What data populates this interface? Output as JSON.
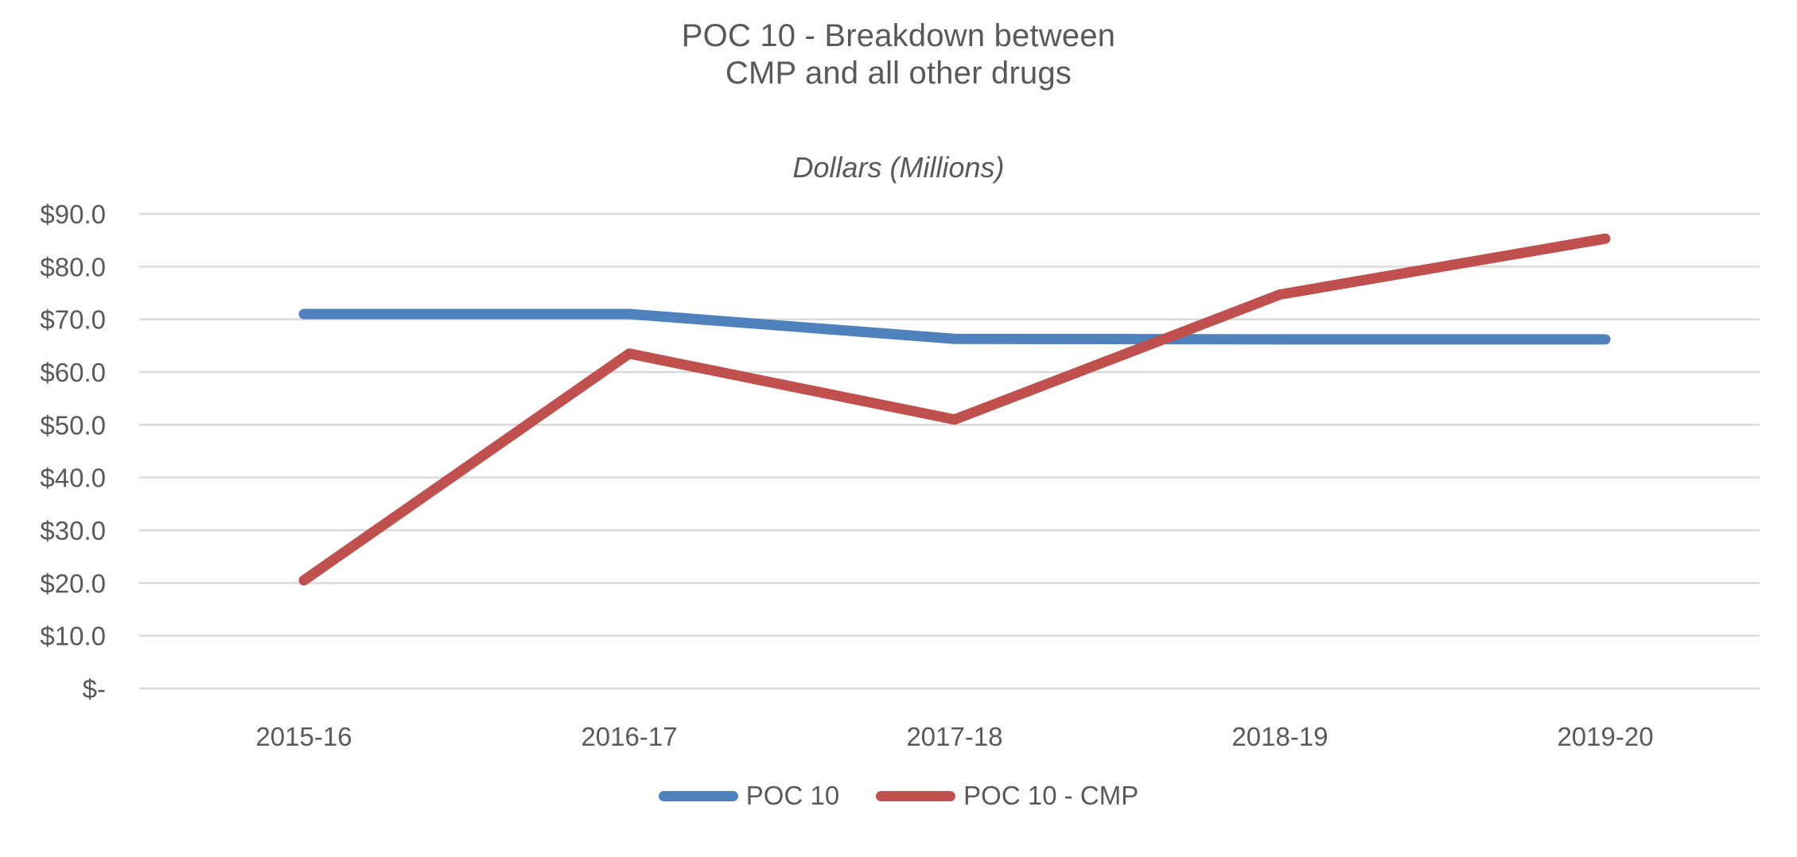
{
  "chart_data": {
    "type": "line",
    "title_lines": [
      "POC 10 - Breakdown between",
      "CMP and all other drugs"
    ],
    "subtitle": "Dollars (Millions)",
    "categories": [
      "2015-16",
      "2016-17",
      "2017-18",
      "2018-19",
      "2019-20"
    ],
    "series": [
      {
        "name": "POC 10",
        "color": "#4F81BD",
        "values": [
          71.0,
          71.0,
          66.3,
          66.2,
          66.2
        ]
      },
      {
        "name": "POC 10 - CMP",
        "color": "#C0504D",
        "values": [
          20.5,
          63.5,
          51.0,
          74.7,
          85.3
        ]
      }
    ],
    "ylim": [
      0,
      90
    ],
    "y_tick_step": 10,
    "y_tick_labels": [
      "$-",
      "$10.0",
      "$20.0",
      "$30.0",
      "$40.0",
      "$50.0",
      "$60.0",
      "$70.0",
      "$80.0",
      "$90.0"
    ],
    "grid": true,
    "legend_position": "bottom-center",
    "colors": {
      "text": "#595959",
      "gridline": "#D9D9D9",
      "background": "#FFFFFF",
      "series_blue": "#4F81BD",
      "series_red": "#C0504D"
    }
  }
}
